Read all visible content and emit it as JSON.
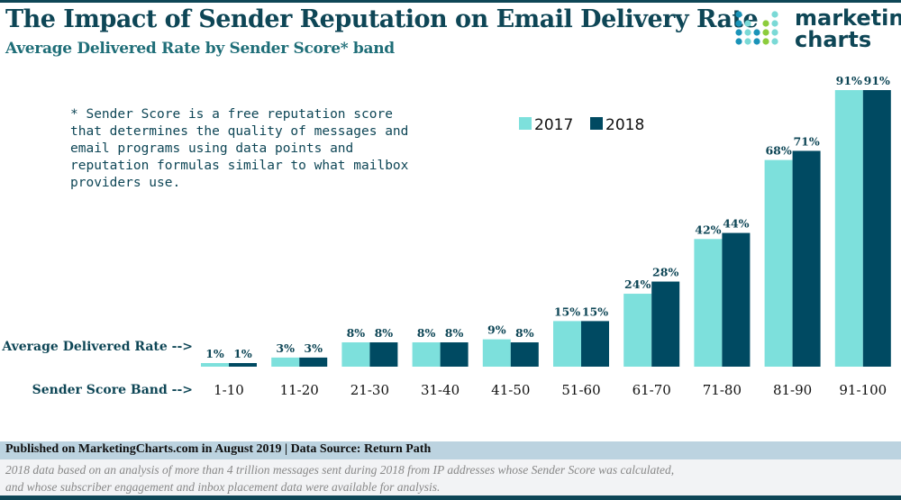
{
  "title": "The Impact of Sender Reputation on Email Delivery Rate",
  "subtitle": "Average Delivered Rate by Sender Score* band",
  "logo": {
    "line1": "marketing",
    "line2": "charts"
  },
  "note": "* Sender Score is a free reputation score that determines the quality of messages and email programs using data points and reputation formulas similar to what mailbox providers use.",
  "footer": {
    "source": "Published on MarketingCharts.com in August 2019 | Data Source: Return Path",
    "note_line1": "2018 data based on an analysis of more than 4 trillion messages sent during 2018 from IP addresses whose Sender Score was calculated,",
    "note_line2": "and whose subscriber engagement and inbox placement data were available for analysis."
  },
  "chart_data": {
    "type": "bar",
    "title": "The Impact of Sender Reputation on Email Delivery Rate",
    "subtitle": "Average Delivered Rate by Sender Score* band",
    "row_label_values": "Average Delivered Rate -->",
    "row_label_categories": "Sender Score Band -->",
    "categories": [
      "1-10",
      "11-20",
      "21-30",
      "31-40",
      "41-50",
      "51-60",
      "61-70",
      "71-80",
      "81-90",
      "91-100"
    ],
    "series": [
      {
        "name": "2017",
        "color": "#7de0dc",
        "values": [
          1,
          3,
          8,
          8,
          9,
          15,
          24,
          42,
          68,
          91
        ]
      },
      {
        "name": "2018",
        "color": "#004a62",
        "values": [
          1,
          3,
          8,
          8,
          8,
          15,
          28,
          44,
          71,
          91
        ]
      }
    ],
    "value_suffix": "%",
    "ylim": [
      0,
      91
    ],
    "grid": false,
    "legend_position": "top-center"
  }
}
